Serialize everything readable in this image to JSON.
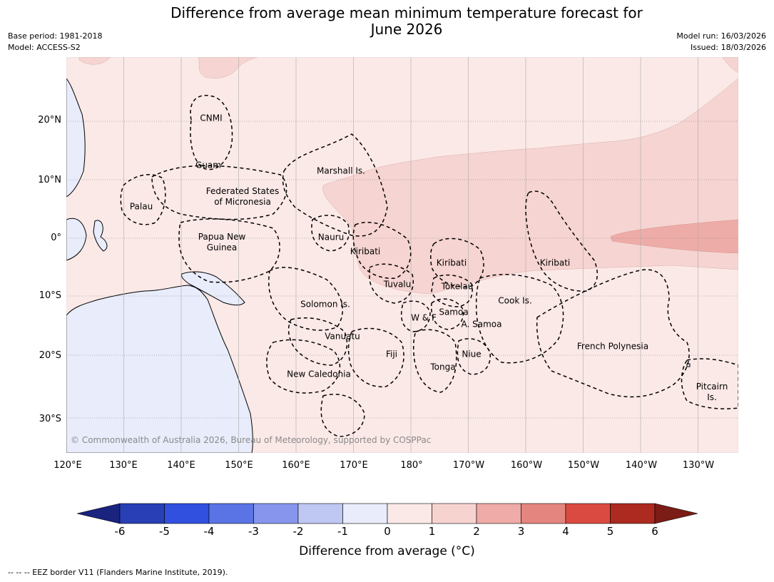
{
  "title_line1": "Difference from average mean minimum temperature forecast for",
  "title_line2": "June 2026",
  "base_period": "Base period: 1981-2018",
  "model": "Model: ACCESS-S2",
  "model_run": "Model run: 16/03/2026",
  "issued": "Issued: 18/03/2026",
  "latitude_labels": [
    "20°N",
    "10°N",
    "0°",
    "10°S",
    "20°S",
    "30°S"
  ],
  "longitude_labels": [
    "120°E",
    "130°E",
    "140°E",
    "150°E",
    "160°E",
    "170°E",
    "180°",
    "170°W",
    "160°W",
    "150°W",
    "140°W",
    "130°W"
  ],
  "regions": {
    "cnmi": "CNMI",
    "guam": "Guam",
    "marshall": "Marshall Is.",
    "fsm_1": "Federated States",
    "fsm_2": "of Micronesia",
    "palau": "Palau",
    "nauru": "Nauru",
    "png_1": "Papua New",
    "png_2": "Guinea",
    "kiribati_w": "Kiribati",
    "kiribati_c": "Kiribati",
    "kiribati_e": "Kiribati",
    "tuvalu": "Tuvalu",
    "tokelau": "Tokelau",
    "solomon": "Solomon Is.",
    "samoa": "Samoa",
    "wf": "W & F",
    "asamoa": "A. Samoa",
    "cook": "Cook Is.",
    "vanuatu": "Vanuatu",
    "fiji": "Fiji",
    "niue": "Niue",
    "tonga": "Tonga",
    "french_polynesia": "French Polynesia",
    "new_caledonia": "New Caledonia",
    "pitcairn_1": "Pitcairn",
    "pitcairn_2": "Is."
  },
  "copyright": "© Commonwealth of Australia 2026, Bureau of Meteorology, supported by COSPPac",
  "colorbar": {
    "ticks": [
      "-6",
      "-5",
      "-4",
      "-3",
      "-2",
      "-1",
      "0",
      "1",
      "2",
      "3",
      "4",
      "5",
      "6"
    ],
    "colors": [
      "#1a237e",
      "#283fb5",
      "#3150e0",
      "#5a74e5",
      "#8796ec",
      "#bec8f3",
      "#e8ecfb",
      "#fbe9e7",
      "#f7d3d0",
      "#eeaba7",
      "#e5857f",
      "#db4a40",
      "#ad2a20",
      "#7b1c16"
    ],
    "label": "Difference from average (°C)"
  },
  "fill_colors": {
    "background": "#fbe9e7",
    "anomaly_1_2": "#f6d4d1",
    "anomaly_2_3": "#eeaca8",
    "cool": "#e8ecfb"
  },
  "footnote": "--  --  -- EEZ border V11 (Flanders Marine Institute, 2019)."
}
